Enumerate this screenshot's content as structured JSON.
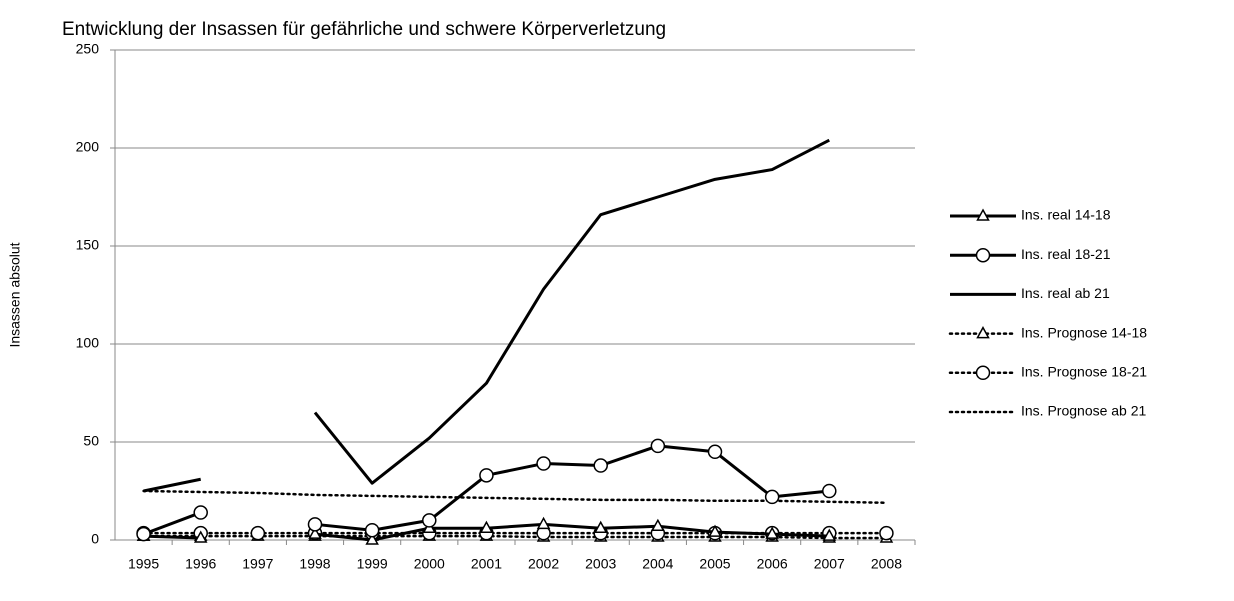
{
  "chart_data": {
    "type": "line",
    "title": "Entwicklung der Insassen für gefährliche und schwere Körperverletzung",
    "y_label": "Insassen absolut",
    "categories": [
      "1995",
      "1996",
      "1997",
      "1998",
      "1999",
      "2000",
      "2001",
      "2002",
      "2003",
      "2004",
      "2005",
      "2006",
      "2007",
      "2008"
    ],
    "ylim": [
      0,
      250
    ],
    "yticks": [
      0,
      50,
      100,
      150,
      200,
      250
    ],
    "grid": true,
    "legend": "right",
    "series": [
      {
        "name": "Ins. real 14-18",
        "color": "#000000",
        "style": "solid",
        "marker": "triangle",
        "values": [
          2,
          1,
          null,
          3,
          0,
          6,
          6,
          8,
          6,
          7,
          4,
          3,
          2,
          null
        ]
      },
      {
        "name": "Ins. real 18-21",
        "color": "#000000",
        "style": "solid",
        "marker": "circle",
        "values": [
          3,
          14,
          null,
          8,
          5,
          10,
          33,
          39,
          38,
          48,
          45,
          22,
          25,
          null
        ]
      },
      {
        "name": "Ins. real ab 21",
        "color": "#000000",
        "style": "solid",
        "marker": "none",
        "values": [
          25,
          31,
          null,
          65,
          29,
          52,
          80,
          128,
          166,
          175,
          184,
          189,
          204,
          null
        ]
      },
      {
        "name": "Ins. Prognose 14-18",
        "color": "#000000",
        "style": "dotted",
        "marker": "triangle",
        "values": [
          2,
          2,
          2,
          2,
          2,
          2,
          2,
          1.5,
          1.5,
          1.5,
          1.5,
          1.5,
          1,
          1
        ]
      },
      {
        "name": "Ins. Prognose 18-21",
        "color": "#000000",
        "style": "dotted",
        "marker": "circle",
        "values": [
          3.5,
          3.5,
          3.5,
          3.5,
          3.5,
          3.5,
          3.5,
          3.5,
          3.5,
          3.5,
          3.5,
          3.5,
          3.5,
          3.5
        ]
      },
      {
        "name": "Ins. Prognose ab 21",
        "color": "#000000",
        "style": "dotted",
        "marker": "none",
        "values": [
          25,
          24.5,
          24,
          23,
          22.5,
          22,
          21.5,
          21,
          20.5,
          20.5,
          20,
          20,
          19.5,
          19
        ]
      }
    ]
  }
}
